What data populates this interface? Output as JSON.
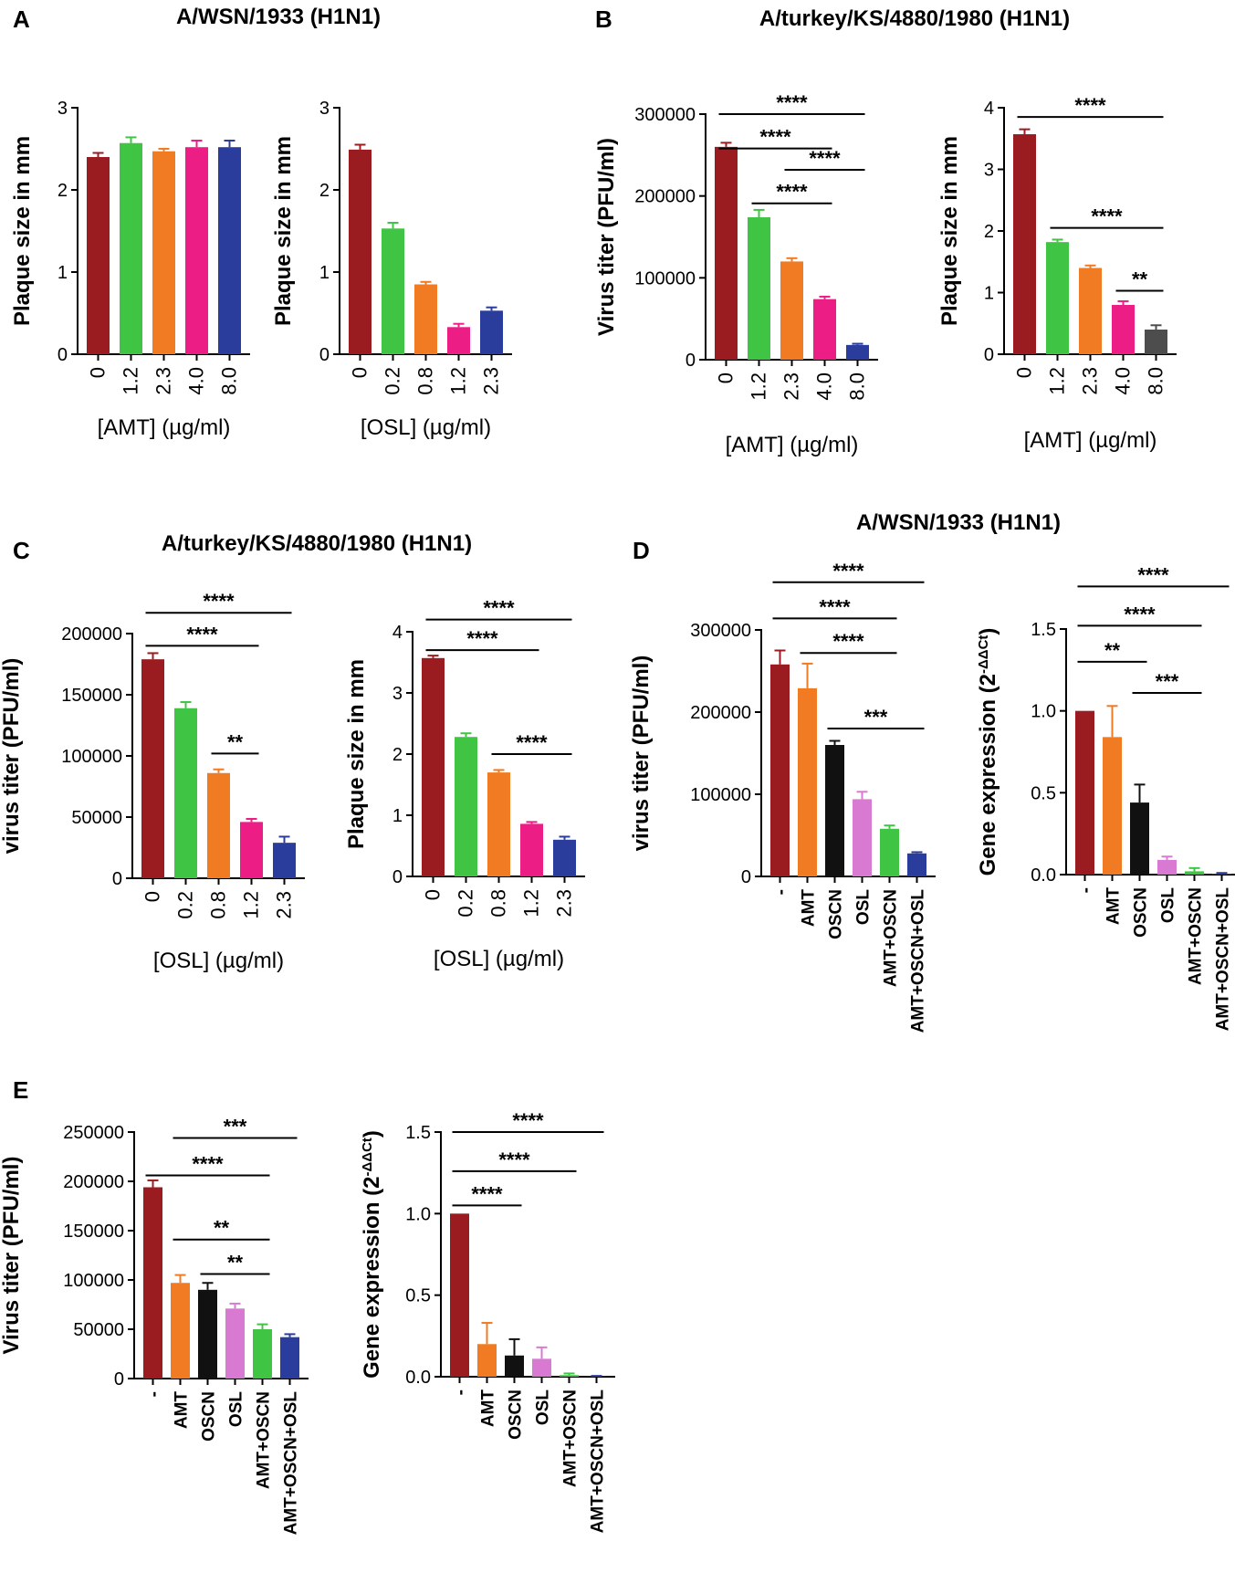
{
  "panel_labels": [
    "A",
    "B",
    "C",
    "D",
    "E"
  ],
  "titles": {
    "A": "A/WSN/1933 (H1N1)",
    "B": "A/turkey/KS/4880/1980 (H1N1)",
    "C": "A/turkey/KS/4880/1980 (H1N1)",
    "D": "A/WSN/1933 (H1N1)"
  },
  "colors": {
    "red": "#9a1c20",
    "green": "#3fc443",
    "orange": "#f07b22",
    "pink": "#ec1e86",
    "blue": "#2b3d9c",
    "black": "#111111",
    "violet": "#d97ad2",
    "gray": "#4d4d4d"
  },
  "chart_data": [
    {
      "id": "A1",
      "type": "bar",
      "title": "",
      "ylabel": "Plaque size in mm",
      "xlabel": "[AMT] (µg/ml)",
      "ylim": [
        0,
        3
      ],
      "yticks": [
        "0",
        "1",
        "2",
        "3"
      ],
      "categories": [
        "0",
        "1.2",
        "2.3",
        "4.0",
        "8.0"
      ],
      "values": [
        2.4,
        2.57,
        2.47,
        2.52,
        2.52
      ],
      "errors": [
        0.05,
        0.07,
        0.03,
        0.08,
        0.08
      ],
      "colors": [
        "red",
        "green",
        "orange",
        "pink",
        "blue"
      ],
      "significance": []
    },
    {
      "id": "A2",
      "type": "bar",
      "title": "",
      "ylabel": "Plaque size in mm",
      "xlabel": "[OSL] (µg/ml)",
      "ylim": [
        0,
        3
      ],
      "yticks": [
        "0",
        "1",
        "2",
        "3"
      ],
      "categories": [
        "0",
        "0.2",
        "0.8",
        "1.2",
        "2.3"
      ],
      "values": [
        2.49,
        1.53,
        0.85,
        0.33,
        0.53
      ],
      "errors": [
        0.06,
        0.07,
        0.03,
        0.04,
        0.04
      ],
      "colors": [
        "red",
        "green",
        "orange",
        "pink",
        "blue"
      ],
      "significance": []
    },
    {
      "id": "B1",
      "type": "bar",
      "title": "",
      "ylabel": "Virus titer (PFU/ml)",
      "xlabel": "[AMT] (µg/ml)",
      "ylim": [
        0,
        300000
      ],
      "yticks": [
        "0",
        "100000",
        "200000",
        "300000"
      ],
      "categories": [
        "0",
        "1.2",
        "2.3",
        "4.0",
        "8.0"
      ],
      "values": [
        260000,
        174000,
        120000,
        74000,
        18000
      ],
      "errors": [
        5000,
        9000,
        4000,
        3000,
        1500
      ],
      "colors": [
        "red",
        "green",
        "orange",
        "pink",
        "blue"
      ],
      "significance": [
        {
          "from": 0,
          "to": 4,
          "level": 300000,
          "label": "****"
        },
        {
          "from": 0,
          "to": 3,
          "level": 258000,
          "label": "****"
        },
        {
          "from": 2,
          "to": 4,
          "level": 232000,
          "label": "****"
        },
        {
          "from": 1,
          "to": 3,
          "level": 191000,
          "label": "****"
        }
      ]
    },
    {
      "id": "B2",
      "type": "bar",
      "title": "",
      "ylabel": "Plaque size in mm",
      "xlabel": "[AMT] (µg/ml)",
      "ylim": [
        0,
        4
      ],
      "yticks": [
        "0",
        "1",
        "2",
        "3",
        "4"
      ],
      "categories": [
        "0",
        "1.2",
        "2.3",
        "4.0",
        "8.0"
      ],
      "values": [
        3.57,
        1.82,
        1.4,
        0.8,
        0.4
      ],
      "errors": [
        0.08,
        0.04,
        0.04,
        0.06,
        0.07
      ],
      "colors": [
        "red",
        "green",
        "orange",
        "pink",
        "gray"
      ],
      "significance": [
        {
          "from": 0,
          "to": 4,
          "level": 3.85,
          "label": "****"
        },
        {
          "from": 1,
          "to": 4,
          "level": 2.05,
          "label": "****"
        },
        {
          "from": 3,
          "to": 4,
          "level": 1.03,
          "label": "**"
        }
      ]
    },
    {
      "id": "C1",
      "type": "bar",
      "title": "",
      "ylabel": "virus titer (PFU/ml)",
      "xlabel": "[OSL] (µg/ml)",
      "ylim": [
        0,
        200000
      ],
      "yticks": [
        "0",
        "50000",
        "100000",
        "150000",
        "200000"
      ],
      "categories": [
        "0",
        "0.2",
        "0.8",
        "1.2",
        "2.3"
      ],
      "values": [
        179000,
        139000,
        86000,
        46000,
        29000
      ],
      "errors": [
        5000,
        5000,
        3000,
        2500,
        5000
      ],
      "colors": [
        "red",
        "green",
        "orange",
        "pink",
        "blue"
      ],
      "significance": [
        {
          "from": 0,
          "to": 4,
          "level": 217000,
          "label": "****"
        },
        {
          "from": 0,
          "to": 3,
          "level": 190000,
          "label": "****"
        },
        {
          "from": 2,
          "to": 3,
          "level": 102000,
          "label": "**"
        }
      ]
    },
    {
      "id": "C2",
      "type": "bar",
      "title": "",
      "ylabel": "Plaque size in mm",
      "xlabel": "[OSL] (µg/ml)",
      "ylim": [
        0,
        4
      ],
      "yticks": [
        "0",
        "1",
        "2",
        "3",
        "4"
      ],
      "categories": [
        "0",
        "0.2",
        "0.8",
        "1.2",
        "2.3"
      ],
      "values": [
        3.57,
        2.28,
        1.7,
        0.86,
        0.6
      ],
      "errors": [
        0.04,
        0.06,
        0.04,
        0.03,
        0.05
      ],
      "colors": [
        "red",
        "green",
        "orange",
        "pink",
        "blue"
      ],
      "significance": [
        {
          "from": 0,
          "to": 4,
          "level": 4.2,
          "label": "****"
        },
        {
          "from": 0,
          "to": 3,
          "level": 3.7,
          "label": "****"
        },
        {
          "from": 2,
          "to": 4,
          "level": 2.0,
          "label": "****"
        }
      ]
    },
    {
      "id": "D1",
      "type": "bar",
      "title": "",
      "ylabel": "virus titer (PFU/ml)",
      "xlabel": "",
      "ylim": [
        0,
        300000
      ],
      "yticks": [
        "0",
        "100000",
        "200000",
        "300000"
      ],
      "categories": [
        "-",
        "AMT",
        "OSCN",
        "OSL",
        "AMT+OSCN",
        "AMT+OSCN+OSL"
      ],
      "values": [
        258000,
        229000,
        160000,
        94000,
        58000,
        28000
      ],
      "errors": [
        17000,
        30000,
        5000,
        9000,
        4000,
        1500
      ],
      "colors": [
        "red",
        "orange",
        "black",
        "violet",
        "green",
        "blue"
      ],
      "significance": [
        {
          "from": 0,
          "to": 5,
          "level": 358000,
          "label": "****"
        },
        {
          "from": 0,
          "to": 4,
          "level": 314000,
          "label": "****"
        },
        {
          "from": 1,
          "to": 4,
          "level": 272000,
          "label": "****"
        },
        {
          "from": 2,
          "to": 5,
          "level": 180000,
          "label": "***"
        }
      ]
    },
    {
      "id": "D2",
      "type": "bar",
      "title": "",
      "ylabel": "Gene expression (2",
      "ylabel_sup": "-ΔΔCt",
      "ylabel_close": ")",
      "xlabel": "",
      "ylim": [
        0,
        1.5
      ],
      "yticks": [
        "0.0",
        "0.5",
        "1.0",
        "1.5"
      ],
      "categories": [
        "-",
        "AMT",
        "OSCN",
        "OSL",
        "AMT+OSCN",
        "AMT+OSCN+OSL"
      ],
      "values": [
        1.0,
        0.84,
        0.44,
        0.09,
        0.02,
        0.005
      ],
      "errors": [
        0,
        0.19,
        0.11,
        0.02,
        0.02,
        0.005
      ],
      "colors": [
        "red",
        "orange",
        "black",
        "violet",
        "green",
        "blue"
      ],
      "significance": [
        {
          "from": 0,
          "to": 5,
          "level": 1.76,
          "label": "****"
        },
        {
          "from": 0,
          "to": 4,
          "level": 1.52,
          "label": "****"
        },
        {
          "from": 0,
          "to": 2,
          "level": 1.3,
          "label": "**"
        },
        {
          "from": 2,
          "to": 4,
          "level": 1.11,
          "label": "***"
        }
      ]
    },
    {
      "id": "E1",
      "type": "bar",
      "title": "",
      "ylabel": "Virus titer (PFU/ml)",
      "xlabel": "",
      "ylim": [
        0,
        250000
      ],
      "yticks": [
        "0",
        "50000",
        "100000",
        "150000",
        "200000",
        "250000"
      ],
      "categories": [
        "-",
        "AMT",
        "OSCN",
        "OSL",
        "AMT+OSCN",
        "AMT+OSCN+OSL"
      ],
      "values": [
        194000,
        97000,
        90000,
        71000,
        50000,
        42000
      ],
      "errors": [
        7000,
        8000,
        7000,
        5000,
        5000,
        3000
      ],
      "colors": [
        "red",
        "orange",
        "black",
        "violet",
        "green",
        "blue"
      ],
      "significance": [
        {
          "from": 1,
          "to": 5,
          "level": 244000,
          "label": "***"
        },
        {
          "from": 0,
          "to": 4,
          "level": 206000,
          "label": "****"
        },
        {
          "from": 1,
          "to": 4,
          "level": 141000,
          "label": "**"
        },
        {
          "from": 2,
          "to": 4,
          "level": 106000,
          "label": "**"
        }
      ]
    },
    {
      "id": "E2",
      "type": "bar",
      "title": "",
      "ylabel": "Gene expression (2",
      "ylabel_sup": "-ΔΔCt",
      "ylabel_close": ")",
      "xlabel": "",
      "ylim": [
        0,
        1.5
      ],
      "yticks": [
        "0.0",
        "0.5",
        "1.0",
        "1.5"
      ],
      "categories": [
        "-",
        "AMT",
        "OSCN",
        "OSL",
        "AMT+OSCN",
        "AMT+OSCN+OSL"
      ],
      "values": [
        1.0,
        0.2,
        0.13,
        0.11,
        0.01,
        0.003
      ],
      "errors": [
        0,
        0.13,
        0.1,
        0.07,
        0.01,
        0.002
      ],
      "colors": [
        "red",
        "orange",
        "black",
        "violet",
        "green",
        "blue"
      ],
      "significance": [
        {
          "from": 0,
          "to": 5,
          "level": 1.5,
          "label": "****"
        },
        {
          "from": 0,
          "to": 4,
          "level": 1.26,
          "label": "****"
        },
        {
          "from": 0,
          "to": 2,
          "level": 1.05,
          "label": "****"
        }
      ]
    }
  ]
}
